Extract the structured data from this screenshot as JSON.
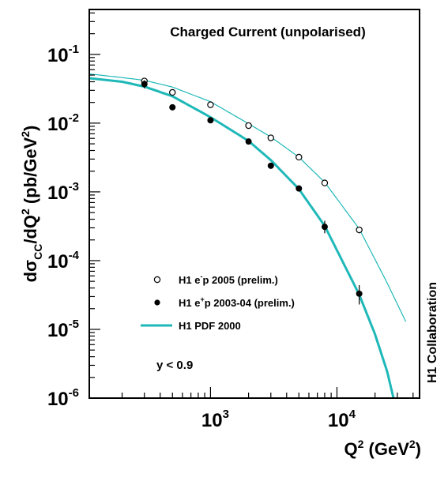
{
  "chart_data": {
    "type": "scatter",
    "title": "Charged Current (unpolarised)",
    "xlabel": {
      "base": "Q",
      "sup": "2",
      "unit_pre": " (GeV",
      "unit_sup": "2",
      "unit_post": ")"
    },
    "ylabel": {
      "d1": "dσ",
      "sub": "CC",
      "mid": "/dQ",
      "sup1": "2",
      "unit_pre": " (pb/GeV",
      "sup2": "2",
      "unit_post": ")"
    },
    "x_scale": "log",
    "y_scale": "log",
    "xlim": [
      110,
      45000
    ],
    "ylim": [
      1e-06,
      0.45
    ],
    "x_ticks": [
      {
        "value": 1000,
        "base": "10",
        "exp": "3"
      },
      {
        "value": 10000,
        "base": "10",
        "exp": "4"
      }
    ],
    "y_ticks": [
      {
        "value": 0.1,
        "base": "10",
        "exp": "-1"
      },
      {
        "value": 0.01,
        "base": "10",
        "exp": "-2"
      },
      {
        "value": 0.001,
        "base": "10",
        "exp": "-3"
      },
      {
        "value": 0.0001,
        "base": "10",
        "exp": "-4"
      },
      {
        "value": 1e-05,
        "base": "10",
        "exp": "-5"
      },
      {
        "value": 1e-06,
        "base": "10",
        "exp": "-6"
      }
    ],
    "grid": false,
    "legend_position": "center-left",
    "series": [
      {
        "label_pre": "H1 e",
        "label_sup": "-",
        "label_post": "p 2005 (prelim.)",
        "marker": "open-circle",
        "points": [
          {
            "x": 300,
            "y": 0.041,
            "err_lo": 0.037,
            "err_hi": 0.045
          },
          {
            "x": 500,
            "y": 0.028,
            "err_lo": 0.0265,
            "err_hi": 0.0295
          },
          {
            "x": 1000,
            "y": 0.0185,
            "err_lo": 0.0175,
            "err_hi": 0.0195
          },
          {
            "x": 2000,
            "y": 0.0092,
            "err_lo": 0.0087,
            "err_hi": 0.0097
          },
          {
            "x": 3000,
            "y": 0.0061,
            "err_lo": 0.0058,
            "err_hi": 0.0064
          },
          {
            "x": 5000,
            "y": 0.0032,
            "err_lo": 0.003,
            "err_hi": 0.0034
          },
          {
            "x": 8000,
            "y": 0.00135,
            "err_lo": 0.00126,
            "err_hi": 0.00144
          },
          {
            "x": 15000,
            "y": 0.00028,
            "err_lo": 0.00025,
            "err_hi": 0.00031
          }
        ]
      },
      {
        "label_pre": "H1 e",
        "label_sup": "+",
        "label_post": "p 2003-04 (prelim.)",
        "marker": "filled-circle",
        "points": [
          {
            "x": 300,
            "y": 0.037,
            "err_lo": 0.032,
            "err_hi": 0.042
          },
          {
            "x": 500,
            "y": 0.017,
            "err_lo": 0.0158,
            "err_hi": 0.0182
          },
          {
            "x": 1000,
            "y": 0.011,
            "err_lo": 0.0104,
            "err_hi": 0.0116
          },
          {
            "x": 2000,
            "y": 0.0054,
            "err_lo": 0.0051,
            "err_hi": 0.0057
          },
          {
            "x": 3000,
            "y": 0.0024,
            "err_lo": 0.0022,
            "err_hi": 0.0026
          },
          {
            "x": 5000,
            "y": 0.00112,
            "err_lo": 0.00102,
            "err_hi": 0.00122
          },
          {
            "x": 8000,
            "y": 0.00031,
            "err_lo": 0.00025,
            "err_hi": 0.00038
          },
          {
            "x": 15000,
            "y": 3.3e-05,
            "err_lo": 2.3e-05,
            "err_hi": 4.4e-05
          }
        ]
      }
    ],
    "curves": [
      {
        "label": "H1 PDF 2000",
        "for": "e-p",
        "color": "#1fb8b8",
        "width": "thin",
        "points": [
          [
            110,
            0.052
          ],
          [
            200,
            0.046
          ],
          [
            300,
            0.042
          ],
          [
            500,
            0.0335
          ],
          [
            1000,
            0.0205
          ],
          [
            2000,
            0.0098
          ],
          [
            3000,
            0.0063
          ],
          [
            5000,
            0.0032
          ],
          [
            8000,
            0.00138
          ],
          [
            15000,
            0.00029
          ],
          [
            25000,
            4.7e-05
          ],
          [
            35000,
            1.3e-05
          ]
        ]
      },
      {
        "label": "H1 PDF 2000",
        "for": "e+p",
        "color": "#1fb8b8",
        "width": "thick",
        "points": [
          [
            110,
            0.045
          ],
          [
            200,
            0.04
          ],
          [
            300,
            0.034
          ],
          [
            500,
            0.0246
          ],
          [
            1000,
            0.0122
          ],
          [
            2000,
            0.0055
          ],
          [
            3000,
            0.0029
          ],
          [
            5000,
            0.0011
          ],
          [
            8000,
            0.00032
          ],
          [
            15000,
            3.2e-05
          ],
          [
            20000,
            8.5e-06
          ],
          [
            25000,
            2.4e-06
          ],
          [
            28000,
            1e-06
          ]
        ]
      }
    ],
    "legend": [
      {
        "marker": "open-circle",
        "series": 0
      },
      {
        "marker": "filled-circle",
        "series": 1
      },
      {
        "marker": "line",
        "curve": 0
      }
    ],
    "annotation": "y < 0.9",
    "side_label": "H1 Collaboration"
  }
}
